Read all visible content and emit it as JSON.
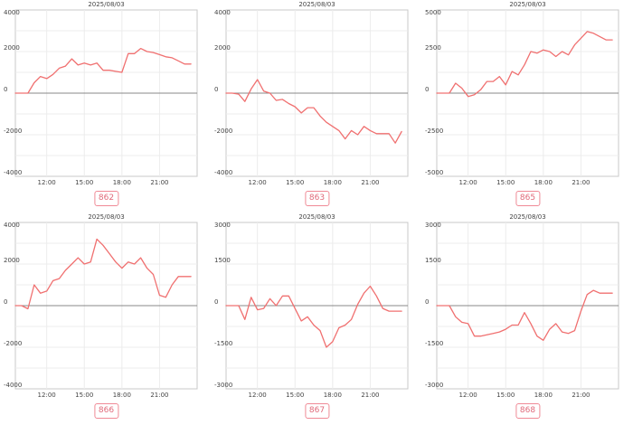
{
  "style": {
    "line_color": "#f07070",
    "badge_color": "#e06a7a"
  },
  "chart_data": [
    {
      "type": "line",
      "id": "862",
      "title": "2025/08/03",
      "x_unit": "hour",
      "xlim": [
        9.5,
        24
      ],
      "x_ticks": [
        12,
        15,
        18,
        21
      ],
      "x_tick_labels": [
        "12:00",
        "15:00",
        "18:00",
        "21:00"
      ],
      "ylim": [
        -4000,
        4000
      ],
      "y_ticks": [
        4000,
        2000,
        0,
        -2000,
        -4000
      ],
      "y_tick_labels": [
        "4000",
        "2000",
        "0",
        "-2000",
        "-4000"
      ],
      "grid": true,
      "series": [
        {
          "x": [
            9.5,
            10.0,
            10.5,
            11.0,
            11.5,
            12.0,
            12.5,
            13.0,
            13.5,
            14.0,
            14.5,
            15.0,
            15.5,
            16.0,
            16.5,
            17.0,
            17.5,
            18.0,
            18.5,
            19.0,
            19.5,
            20.0,
            20.5,
            21.0,
            21.5,
            22.0,
            22.5,
            23.0,
            23.5
          ],
          "y": [
            0,
            0,
            0,
            500,
            800,
            700,
            900,
            1200,
            1300,
            1650,
            1350,
            1450,
            1350,
            1450,
            1100,
            1100,
            1050,
            1000,
            1900,
            1900,
            2150,
            2000,
            1950,
            1850,
            1750,
            1700,
            1550,
            1400,
            1400
          ]
        }
      ]
    },
    {
      "type": "line",
      "id": "863",
      "title": "2025/08/03",
      "x_unit": "hour",
      "xlim": [
        9.5,
        24
      ],
      "x_ticks": [
        12,
        15,
        18,
        21
      ],
      "x_tick_labels": [
        "12:00",
        "15:00",
        "18:00",
        "21:00"
      ],
      "ylim": [
        -4000,
        4000
      ],
      "y_ticks": [
        4000,
        2000,
        0,
        -2000,
        -4000
      ],
      "y_tick_labels": [
        "4000",
        "2000",
        "0",
        "-2000",
        "-4000"
      ],
      "grid": true,
      "series": [
        {
          "x": [
            9.5,
            10.0,
            10.5,
            11.0,
            11.5,
            12.0,
            12.5,
            13.0,
            13.5,
            14.0,
            14.5,
            15.0,
            15.5,
            16.0,
            16.5,
            17.0,
            17.5,
            18.0,
            18.5,
            19.0,
            19.5,
            20.0,
            20.5,
            21.0,
            21.5,
            22.0,
            22.5,
            23.0,
            23.5
          ],
          "y": [
            0,
            0,
            -50,
            -400,
            200,
            650,
            100,
            0,
            -350,
            -300,
            -500,
            -650,
            -950,
            -700,
            -700,
            -1100,
            -1400,
            -1600,
            -1800,
            -2200,
            -1800,
            -2000,
            -1600,
            -1800,
            -1950,
            -1950,
            -1950,
            -2400,
            -1850
          ]
        }
      ]
    },
    {
      "type": "line",
      "id": "865",
      "title": "2025/08/03",
      "x_unit": "hour",
      "xlim": [
        9.5,
        24
      ],
      "x_ticks": [
        12,
        15,
        18,
        21
      ],
      "x_tick_labels": [
        "12:00",
        "15:00",
        "18:00",
        "21:00"
      ],
      "ylim": [
        -5000,
        5000
      ],
      "y_ticks": [
        5000,
        2500,
        0,
        -2500,
        -5000
      ],
      "y_tick_labels": [
        "5000",
        "2500",
        "0",
        "-2500",
        "-5000"
      ],
      "grid": true,
      "series": [
        {
          "x": [
            9.5,
            10.0,
            10.5,
            11.0,
            11.5,
            12.0,
            12.5,
            13.0,
            13.5,
            14.0,
            14.5,
            15.0,
            15.5,
            16.0,
            16.5,
            17.0,
            17.5,
            18.0,
            18.5,
            19.0,
            19.5,
            20.0,
            20.5,
            21.0,
            21.5,
            22.0,
            22.5,
            23.0,
            23.5
          ],
          "y": [
            0,
            0,
            0,
            600,
            300,
            -200,
            -100,
            200,
            700,
            700,
            1000,
            500,
            1300,
            1100,
            1700,
            2500,
            2400,
            2600,
            2500,
            2200,
            2500,
            2300,
            2900,
            3300,
            3700,
            3600,
            3400,
            3200,
            3200
          ]
        }
      ]
    },
    {
      "type": "line",
      "id": "866",
      "title": "2025/08/03",
      "x_unit": "hour",
      "xlim": [
        9.5,
        24
      ],
      "x_ticks": [
        12,
        15,
        18,
        21
      ],
      "x_tick_labels": [
        "12:00",
        "15:00",
        "18:00",
        "21:00"
      ],
      "ylim": [
        -4000,
        4000
      ],
      "y_ticks": [
        4000,
        2000,
        0,
        -2000,
        -4000
      ],
      "y_tick_labels": [
        "4000",
        "2000",
        "0",
        "-2000",
        "-4000"
      ],
      "grid": true,
      "series": [
        {
          "x": [
            9.5,
            10.0,
            10.5,
            11.0,
            11.5,
            12.0,
            12.5,
            13.0,
            13.5,
            14.0,
            14.5,
            15.0,
            15.5,
            16.0,
            16.5,
            17.0,
            17.5,
            18.0,
            18.5,
            19.0,
            19.5,
            20.0,
            20.5,
            21.0,
            21.5,
            22.0,
            22.5,
            23.0,
            23.5
          ],
          "y": [
            0,
            0,
            -150,
            1000,
            600,
            700,
            1200,
            1300,
            1700,
            2000,
            2300,
            2000,
            2100,
            3200,
            2900,
            2500,
            2100,
            1800,
            2100,
            2000,
            2300,
            1800,
            1500,
            500,
            400,
            1000,
            1400,
            1400,
            1400
          ]
        }
      ]
    },
    {
      "type": "line",
      "id": "867",
      "title": "2025/08/03",
      "x_unit": "hour",
      "xlim": [
        9.5,
        24
      ],
      "x_ticks": [
        12,
        15,
        18,
        21
      ],
      "x_tick_labels": [
        "12:00",
        "15:00",
        "18:00",
        "21:00"
      ],
      "ylim": [
        -3000,
        3000
      ],
      "y_ticks": [
        3000,
        1500,
        0,
        -1500,
        -3000
      ],
      "y_tick_labels": [
        "3000",
        "1500",
        "0",
        "-1500",
        "-3000"
      ],
      "grid": true,
      "series": [
        {
          "x": [
            9.5,
            10.0,
            10.5,
            11.0,
            11.5,
            12.0,
            12.5,
            13.0,
            13.5,
            14.0,
            14.5,
            15.0,
            15.5,
            16.0,
            16.5,
            17.0,
            17.5,
            18.0,
            18.5,
            19.0,
            19.5,
            20.0,
            20.5,
            21.0,
            21.5,
            22.0,
            22.5,
            23.0,
            23.5
          ],
          "y": [
            0,
            0,
            0,
            -500,
            300,
            -150,
            -100,
            250,
            0,
            350,
            350,
            -100,
            -550,
            -400,
            -700,
            -900,
            -1500,
            -1300,
            -800,
            -700,
            -500,
            50,
            450,
            700,
            350,
            -100,
            -200,
            -200,
            -200
          ]
        }
      ]
    },
    {
      "type": "line",
      "id": "868",
      "title": "2025/08/03",
      "x_unit": "hour",
      "xlim": [
        9.5,
        24
      ],
      "x_ticks": [
        12,
        15,
        18,
        21
      ],
      "x_tick_labels": [
        "12:00",
        "15:00",
        "18:00",
        "21:00"
      ],
      "ylim": [
        -3000,
        3000
      ],
      "y_ticks": [
        3000,
        1500,
        0,
        -1500,
        -3000
      ],
      "y_tick_labels": [
        "3000",
        "1500",
        "0",
        "-1500",
        "-3000"
      ],
      "grid": true,
      "series": [
        {
          "x": [
            9.5,
            10.0,
            10.5,
            11.0,
            11.5,
            12.0,
            12.5,
            13.0,
            13.5,
            14.0,
            14.5,
            15.0,
            15.5,
            16.0,
            16.5,
            17.0,
            17.5,
            18.0,
            18.5,
            19.0,
            19.5,
            20.0,
            20.5,
            21.0,
            21.5,
            22.0,
            22.5,
            23.0,
            23.5
          ],
          "y": [
            0,
            0,
            0,
            -400,
            -600,
            -650,
            -1100,
            -1100,
            -1050,
            -1000,
            -950,
            -850,
            -700,
            -700,
            -250,
            -650,
            -1100,
            -1250,
            -850,
            -650,
            -950,
            -1000,
            -900,
            -200,
            400,
            550,
            450,
            450,
            450
          ]
        }
      ]
    }
  ]
}
